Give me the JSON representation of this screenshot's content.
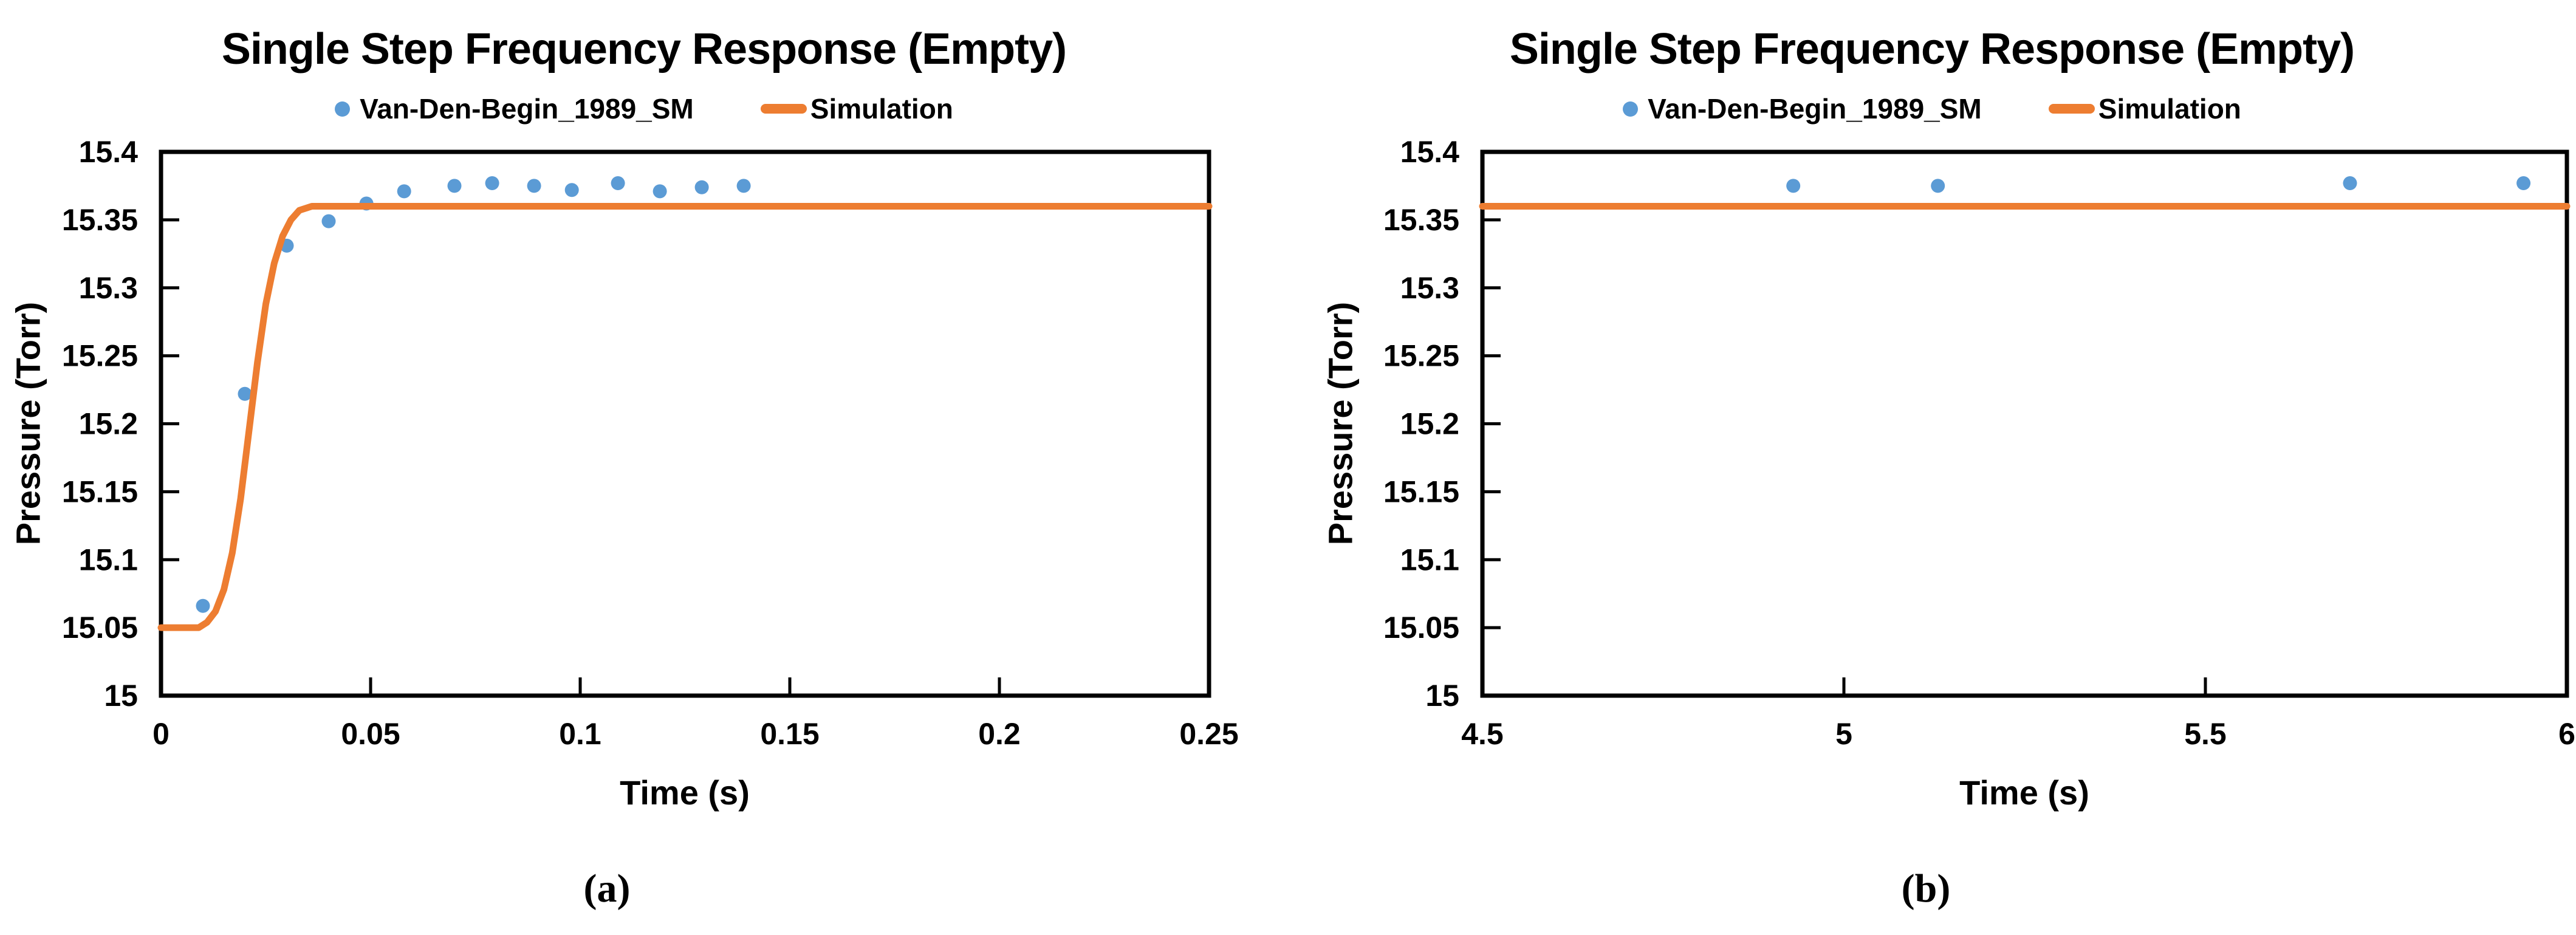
{
  "figure_background": "#ffffff",
  "colors": {
    "scatter": "#5B9BD5",
    "line": "#ED7D31",
    "axis": "#000000"
  },
  "panels": [
    {
      "title": "Single Step Frequency Response (Empty)",
      "legend": [
        {
          "label": "Van-Den-Begin_1989_SM",
          "marker": "dot",
          "color": "#5B9BD5"
        },
        {
          "label": "Simulation",
          "marker": "line",
          "color": "#ED7D31"
        }
      ],
      "ylabel": "Pressure (Torr)",
      "xlabel": "Time (s)",
      "sublabel": "(a)",
      "xticks": [
        0,
        0.05,
        0.1,
        0.15,
        0.2,
        0.25
      ],
      "xtick_labels": [
        "0",
        "0.05",
        "0.1",
        "0.15",
        "0.2",
        "0.25"
      ],
      "yticks": [
        15,
        15.05,
        15.1,
        15.15,
        15.2,
        15.25,
        15.3,
        15.35,
        15.4
      ],
      "ytick_labels": [
        "15",
        "15.05",
        "15.1",
        "15.15",
        "15.2",
        "15.25",
        "15.3",
        "15.35",
        "15.4"
      ]
    },
    {
      "title": "Single Step Frequency Response (Empty)",
      "legend": [
        {
          "label": "Van-Den-Begin_1989_SM",
          "marker": "dot",
          "color": "#5B9BD5"
        },
        {
          "label": "Simulation",
          "marker": "line",
          "color": "#ED7D31"
        }
      ],
      "ylabel": "Pressure (Torr)",
      "xlabel": "Time (s)",
      "sublabel": "(b)",
      "xticks": [
        4.5,
        5,
        5.5,
        6
      ],
      "xtick_labels": [
        "4.5",
        "5",
        "5.5",
        "6"
      ],
      "yticks": [
        15,
        15.05,
        15.1,
        15.15,
        15.2,
        15.25,
        15.3,
        15.35,
        15.4
      ],
      "ytick_labels": [
        "15",
        "15.05",
        "15.1",
        "15.15",
        "15.2",
        "15.25",
        "15.3",
        "15.35",
        "15.4"
      ]
    }
  ],
  "chart_data": [
    {
      "type": "scatter",
      "title": "Single Step Frequency Response (Empty)",
      "xlabel": "Time (s)",
      "ylabel": "Pressure (Torr)",
      "xlim": [
        0,
        0.25
      ],
      "ylim": [
        15,
        15.4
      ],
      "grid": false,
      "legend_position": "top",
      "series": [
        {
          "name": "Van-Den-Begin_1989_SM",
          "type": "scatter",
          "color": "#5B9BD5",
          "x": [
            0.01,
            0.02,
            0.03,
            0.04,
            0.049,
            0.058,
            0.07,
            0.079,
            0.089,
            0.098,
            0.109,
            0.119,
            0.129,
            0.139
          ],
          "y": [
            15.066,
            15.222,
            15.331,
            15.349,
            15.362,
            15.371,
            15.375,
            15.377,
            15.375,
            15.372,
            15.377,
            15.371,
            15.374,
            15.375
          ]
        },
        {
          "name": "Simulation",
          "type": "line",
          "color": "#ED7D31",
          "x": [
            0,
            0.009,
            0.011,
            0.013,
            0.015,
            0.017,
            0.019,
            0.021,
            0.023,
            0.025,
            0.027,
            0.029,
            0.031,
            0.033,
            0.036,
            0.04,
            0.25
          ],
          "y": [
            15.05,
            15.05,
            15.054,
            15.062,
            15.078,
            15.105,
            15.145,
            15.195,
            15.245,
            15.288,
            15.318,
            15.338,
            15.35,
            15.357,
            15.36,
            15.36,
            15.36
          ]
        }
      ]
    },
    {
      "type": "scatter",
      "title": "Single Step Frequency Response (Empty)",
      "xlabel": "Time (s)",
      "ylabel": "Pressure (Torr)",
      "xlim": [
        4.5,
        6
      ],
      "ylim": [
        15,
        15.4
      ],
      "grid": false,
      "legend_position": "top",
      "series": [
        {
          "name": "Van-Den-Begin_1989_SM",
          "type": "scatter",
          "color": "#5B9BD5",
          "x": [
            4.93,
            5.13,
            5.7,
            5.94
          ],
          "y": [
            15.375,
            15.375,
            15.377,
            15.377
          ]
        },
        {
          "name": "Simulation",
          "type": "line",
          "color": "#ED7D31",
          "x": [
            4.5,
            6
          ],
          "y": [
            15.36,
            15.36
          ]
        }
      ]
    }
  ]
}
